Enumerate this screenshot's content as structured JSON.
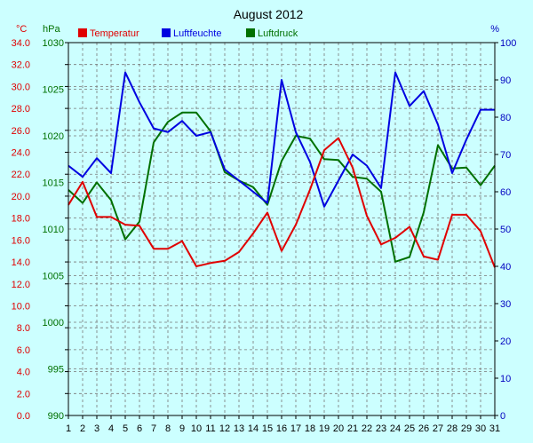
{
  "chart_data": {
    "type": "line",
    "title": "August 2012",
    "x": [
      1,
      2,
      3,
      4,
      5,
      6,
      7,
      8,
      9,
      10,
      11,
      12,
      13,
      14,
      15,
      16,
      17,
      18,
      19,
      20,
      21,
      22,
      23,
      24,
      25,
      26,
      27,
      28,
      29,
      30,
      31
    ],
    "axes": {
      "temperature": {
        "unit": "°C",
        "range": [
          0,
          34
        ],
        "ticks": [
          "0.0",
          "2.0",
          "4.0",
          "6.0",
          "8.0",
          "10.0",
          "12.0",
          "14.0",
          "16.0",
          "18.0",
          "20.0",
          "22.0",
          "24.0",
          "26.0",
          "28.0",
          "30.0",
          "32.0",
          "34.0"
        ]
      },
      "pressure": {
        "unit": "hPa",
        "range": [
          990,
          1030
        ],
        "ticks": [
          "990",
          "995",
          "1000",
          "1005",
          "1010",
          "1015",
          "1020",
          "1025",
          "1030"
        ]
      },
      "humidity": {
        "unit": "%",
        "range": [
          0,
          100
        ],
        "ticks": [
          "0",
          "10",
          "20",
          "30",
          "40",
          "50",
          "60",
          "70",
          "80",
          "90",
          "100"
        ]
      }
    },
    "series": [
      {
        "name": "Temperatur",
        "axis": "temperature",
        "color": "#e00000",
        "values": [
          19.2,
          21.3,
          18.1,
          18.1,
          17.4,
          17.3,
          15.2,
          15.2,
          15.9,
          13.6,
          13.9,
          14.1,
          14.9,
          16.6,
          18.5,
          15.0,
          17.4,
          20.6,
          24.2,
          25.3,
          22.6,
          18.2,
          15.6,
          16.2,
          17.2,
          14.5,
          14.2,
          18.3,
          18.3,
          16.8,
          13.5
        ]
      },
      {
        "name": "Luftfeuchte",
        "axis": "humidity",
        "color": "#0000e0",
        "values": [
          67,
          64,
          69,
          65,
          92,
          84,
          77,
          76,
          79,
          75,
          76,
          66,
          63,
          60,
          57,
          90,
          76,
          68,
          56,
          63,
          70,
          67,
          61,
          92,
          83,
          87,
          78,
          65,
          74,
          82,
          82
        ]
      },
      {
        "name": "Luftdruck",
        "axis": "pressure",
        "color": "#007000",
        "values": [
          1014.2,
          1012.8,
          1015.0,
          1013.1,
          1008.9,
          1010.8,
          1019.3,
          1021.5,
          1022.5,
          1022.5,
          1020.5,
          1016.1,
          1015.2,
          1014.5,
          1012.6,
          1017.3,
          1020.0,
          1019.7,
          1017.5,
          1017.4,
          1015.6,
          1015.4,
          1014.0,
          1006.5,
          1007.0,
          1011.8,
          1019.0,
          1016.5,
          1016.6,
          1014.7,
          1016.8
        ]
      }
    ],
    "legend": [
      "Temperatur",
      "Luftfeuchte",
      "Luftdruck"
    ],
    "grid": true,
    "legend_position": "top"
  }
}
